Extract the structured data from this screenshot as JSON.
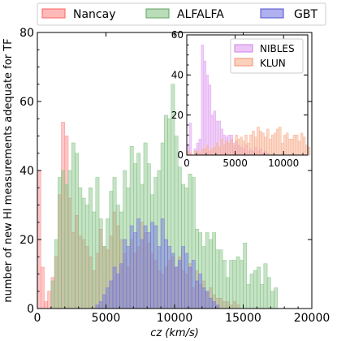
{
  "chart_data": [
    {
      "type": "histogram",
      "xlabel": "cz (km/s)",
      "ylabel": "number of new HI measurements adequate for TF",
      "xlim": [
        0,
        20000
      ],
      "ylim": [
        0,
        80
      ],
      "xticks": [
        "0",
        "5000",
        "10000",
        "15000",
        "20000"
      ],
      "yticks": [
        "0",
        "20",
        "40",
        "60",
        "80"
      ],
      "bin_width": 250,
      "bin_start": 0,
      "legend": {
        "placement": "top, outside",
        "entries": [
          "Nancay",
          "ALFALFA",
          "GBT"
        ]
      },
      "series": [
        {
          "name": "Nancay",
          "color": "#ff8080",
          "values": [
            40,
            12,
            2,
            5,
            9,
            15,
            33,
            54,
            50,
            32,
            22,
            27,
            21,
            20,
            18,
            15,
            11,
            16,
            23,
            18,
            17,
            21,
            28,
            24,
            20,
            16,
            12,
            20,
            16,
            18,
            25,
            22,
            19,
            16,
            14,
            11,
            10,
            12,
            14,
            15,
            12,
            15,
            11,
            10,
            13,
            6,
            11,
            7,
            8,
            5,
            6,
            4,
            3,
            3,
            2,
            2,
            1,
            2,
            1,
            0
          ]
        },
        {
          "name": "ALFALFA",
          "color": "#80c080",
          "values": [
            0,
            0,
            0,
            0,
            8,
            20,
            38,
            40,
            36,
            40,
            48,
            45,
            35,
            32,
            30,
            35,
            28,
            38,
            26,
            18,
            26,
            34,
            38,
            30,
            28,
            40,
            35,
            47,
            42,
            45,
            36,
            48,
            42,
            33,
            38,
            40,
            48,
            56,
            55,
            65,
            50,
            41,
            36,
            35,
            39,
            38,
            23,
            22,
            18,
            22,
            20,
            22,
            17,
            17,
            14,
            9,
            14,
            14,
            15,
            14,
            19,
            7,
            10,
            11,
            12,
            7,
            13,
            9,
            5,
            6
          ]
        },
        {
          "name": "GBT",
          "color": "#7070e0",
          "values": [
            0,
            0,
            0,
            0,
            0,
            0,
            0,
            0,
            0,
            0,
            0,
            0,
            0,
            0,
            0,
            0,
            0,
            1,
            2,
            4,
            6,
            8,
            12,
            10,
            13,
            20,
            18,
            24,
            22,
            26,
            20,
            24,
            22,
            25,
            24,
            18,
            26,
            20,
            18,
            16,
            12,
            14,
            18,
            16,
            12,
            14,
            8,
            10,
            6,
            5,
            3,
            2,
            1
          ]
        }
      ]
    },
    {
      "type": "histogram",
      "inset": true,
      "xlim": [
        0,
        12500
      ],
      "ylim": [
        0,
        60
      ],
      "xticks": [
        "0",
        "5000",
        "10000"
      ],
      "yticks": [
        "0",
        "20",
        "40",
        "60"
      ],
      "bin_width": 250,
      "bin_start": 0,
      "legend": {
        "placement": "top-right",
        "entries": [
          "NIBLES",
          "KLUN"
        ]
      },
      "series": [
        {
          "name": "NIBLES",
          "color": "#e0a0f0",
          "values": [
            5,
            16,
            0,
            3,
            6,
            8,
            55,
            47,
            40,
            35,
            20,
            22,
            17,
            17,
            13,
            10,
            9,
            10,
            10,
            6,
            7,
            5,
            4,
            3,
            5,
            2,
            3,
            2,
            4,
            2,
            3,
            1,
            2,
            1,
            0
          ]
        },
        {
          "name": "KLUN",
          "color": "#f8b090",
          "values": [
            2,
            1,
            0,
            2,
            2,
            1,
            3,
            3,
            5,
            2,
            3,
            4,
            6,
            4,
            8,
            5,
            7,
            6,
            8,
            5,
            10,
            8,
            9,
            7,
            10,
            6,
            10,
            12,
            9,
            14,
            12,
            11,
            9,
            13,
            8,
            10,
            11,
            13,
            14,
            6,
            10,
            11,
            8,
            8,
            10,
            10,
            7,
            11,
            9,
            5,
            4
          ]
        }
      ]
    }
  ]
}
